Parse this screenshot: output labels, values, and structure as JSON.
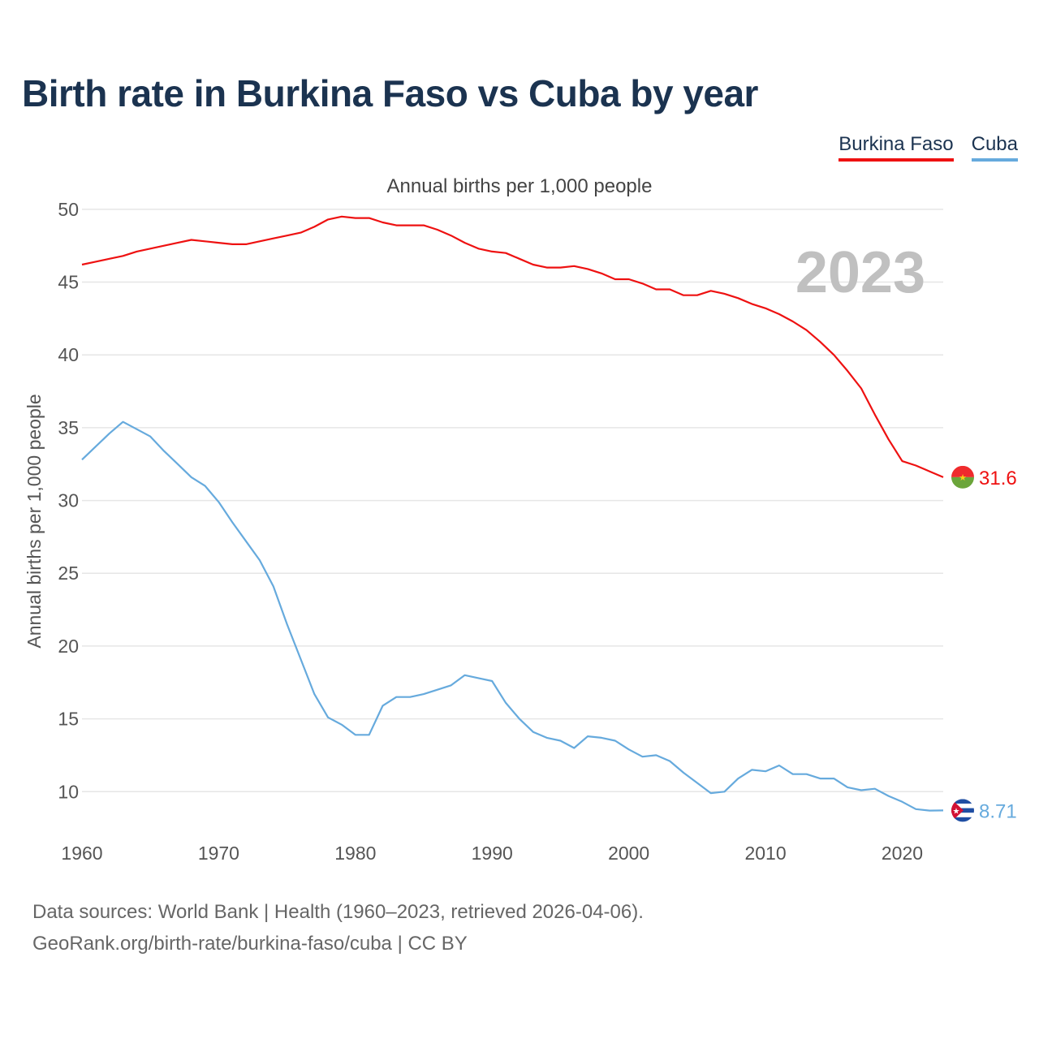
{
  "title": "Birth rate in Burkina Faso vs Cuba by year",
  "subtitle": "Annual births per 1,000 people",
  "legend": [
    "Burkina Faso",
    "Cuba"
  ],
  "source_line1": "Data sources: World Bank | Health (1960–2023, retrieved 2026-04-06).",
  "source_line2": "GeoRank.org/birth-rate/burkina-faso/cuba | CC BY",
  "colors": {
    "burkina_faso": "#ee1111",
    "cuba": "#66aadd",
    "title": "#1b3350",
    "year_watermark": "#c0c0c0",
    "grid": "#e6e6e6"
  },
  "chart_data": {
    "type": "line",
    "title": "Birth rate in Burkina Faso vs Cuba by year",
    "xlabel": "",
    "ylabel": "Annual births per 1,000 people",
    "xlim": [
      1960,
      2023
    ],
    "ylim": [
      6,
      52
    ],
    "x_ticks": [
      1960,
      1970,
      1980,
      1990,
      2000,
      2010,
      2020
    ],
    "y_ticks": [
      10,
      15,
      20,
      25,
      30,
      35,
      40,
      45,
      50
    ],
    "year_label": "2023",
    "grid": true,
    "x": [
      1960,
      1961,
      1962,
      1963,
      1964,
      1965,
      1966,
      1967,
      1968,
      1969,
      1970,
      1971,
      1972,
      1973,
      1974,
      1975,
      1976,
      1977,
      1978,
      1979,
      1980,
      1981,
      1982,
      1983,
      1984,
      1985,
      1986,
      1987,
      1988,
      1989,
      1990,
      1991,
      1992,
      1993,
      1994,
      1995,
      1996,
      1997,
      1998,
      1999,
      2000,
      2001,
      2002,
      2003,
      2004,
      2005,
      2006,
      2007,
      2008,
      2009,
      2010,
      2011,
      2012,
      2013,
      2014,
      2015,
      2016,
      2017,
      2018,
      2019,
      2020,
      2021,
      2022,
      2023
    ],
    "series": [
      {
        "name": "Burkina Faso",
        "end_label": "31.6",
        "values": [
          46.2,
          46.4,
          46.6,
          46.8,
          47.1,
          47.3,
          47.5,
          47.7,
          47.9,
          47.8,
          47.7,
          47.6,
          47.6,
          47.8,
          48.0,
          48.2,
          48.4,
          48.8,
          49.3,
          49.5,
          49.4,
          49.4,
          49.1,
          48.9,
          48.9,
          48.9,
          48.6,
          48.2,
          47.7,
          47.3,
          47.1,
          47.0,
          46.6,
          46.2,
          46.0,
          46.0,
          46.1,
          45.9,
          45.6,
          45.2,
          45.2,
          44.9,
          44.5,
          44.5,
          44.1,
          44.1,
          44.4,
          44.2,
          43.9,
          43.5,
          43.2,
          42.8,
          42.3,
          41.7,
          40.9,
          40.0,
          38.9,
          37.7,
          35.9,
          34.2,
          32.7,
          32.4,
          32.0,
          31.6
        ]
      },
      {
        "name": "Cuba",
        "end_label": "8.71",
        "values": [
          32.8,
          33.7,
          34.6,
          35.4,
          34.9,
          34.4,
          33.4,
          32.5,
          31.6,
          31.0,
          29.9,
          28.5,
          27.2,
          25.9,
          24.1,
          21.5,
          19.1,
          16.7,
          15.1,
          14.6,
          13.9,
          13.9,
          15.9,
          16.5,
          16.5,
          16.7,
          17.0,
          17.3,
          18.0,
          17.8,
          17.6,
          16.1,
          15.0,
          14.1,
          13.7,
          13.5,
          13.0,
          13.8,
          13.7,
          13.5,
          12.9,
          12.4,
          12.5,
          12.1,
          11.3,
          10.6,
          9.9,
          10.0,
          10.9,
          11.5,
          11.4,
          11.8,
          11.2,
          11.2,
          10.9,
          10.9,
          10.3,
          10.1,
          10.2,
          9.7,
          9.3,
          8.8,
          8.7,
          8.71
        ]
      }
    ]
  }
}
